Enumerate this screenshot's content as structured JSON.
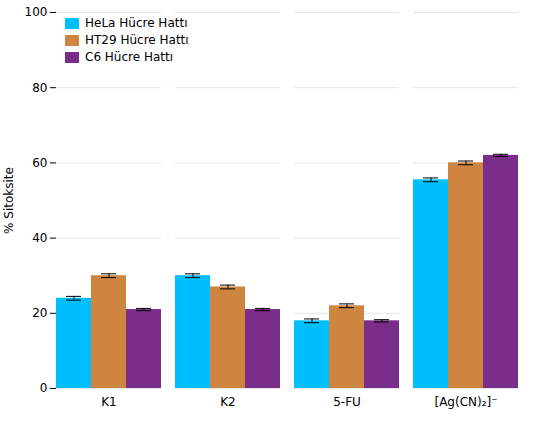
{
  "chart_data": {
    "type": "bar",
    "categories": [
      "K1",
      "K2",
      "5-FU",
      "[Ag(CN)₂]⁻"
    ],
    "series": [
      {
        "name": "HeLa Hücre Hattı",
        "color": "#00BFFF",
        "values": [
          24.0,
          30.0,
          18.0,
          55.5
        ],
        "errors": [
          0.5,
          0.5,
          0.5,
          0.5
        ]
      },
      {
        "name": "HT29 Hücre Hattı",
        "color": "#CD853F",
        "values": [
          30.0,
          27.0,
          22.0,
          60.0
        ],
        "errors": [
          0.5,
          0.5,
          0.5,
          0.5
        ]
      },
      {
        "name": "C6 Hücre Hattı",
        "color": "#7B2D8B",
        "values": [
          21.0,
          21.0,
          18.0,
          62.0
        ],
        "errors": [
          0.3,
          0.3,
          0.3,
          0.3
        ]
      }
    ],
    "ylabel": "% Sitoksite",
    "ylim": [
      0,
      100
    ],
    "yticks": [
      0,
      20,
      40,
      60,
      80,
      100
    ],
    "grid": true,
    "legend": "upper left"
  }
}
